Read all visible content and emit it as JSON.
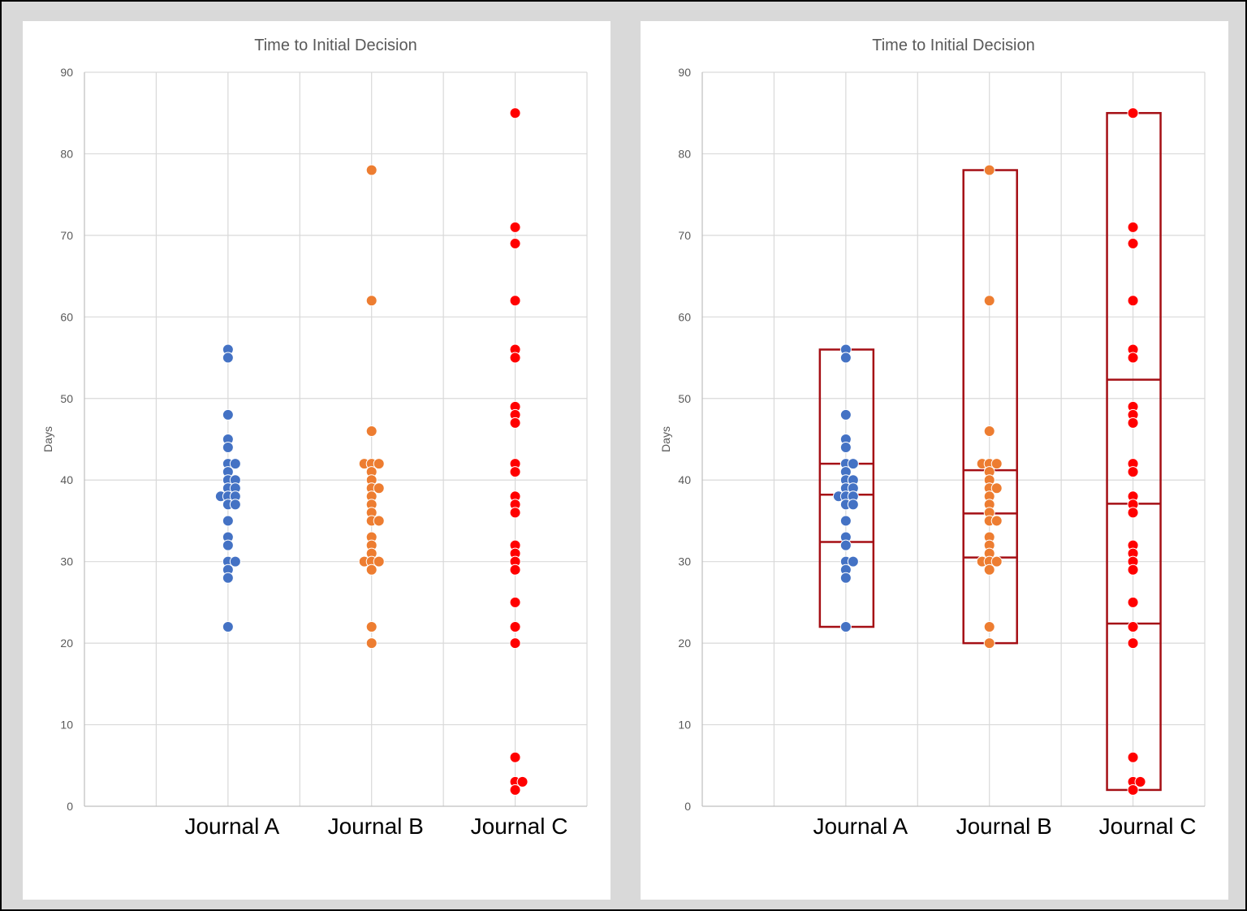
{
  "chart_data": [
    {
      "type": "scatter",
      "title": "Time to Initial Decision",
      "ylabel": "Days",
      "xlabel": "",
      "ylim": [
        0,
        90
      ],
      "yticks": [
        0,
        10,
        20,
        30,
        40,
        50,
        60,
        70,
        80,
        90
      ],
      "grid": true,
      "categories": [
        "Journal A",
        "Journal B",
        "Journal C"
      ],
      "series": [
        {
          "name": "Journal A",
          "color": "#4472c4",
          "values": [
            56,
            55,
            48,
            45,
            44,
            42,
            42,
            41,
            40,
            40,
            39,
            39,
            38,
            38,
            38,
            37,
            37,
            35,
            33,
            32,
            30,
            30,
            29,
            28,
            22
          ]
        },
        {
          "name": "Journal B",
          "color": "#ed7d31",
          "values": [
            78,
            62,
            46,
            42,
            42,
            42,
            41,
            40,
            39,
            39,
            38,
            37,
            36,
            35,
            35,
            33,
            32,
            31,
            30,
            30,
            30,
            29,
            22,
            20
          ]
        },
        {
          "name": "Journal C",
          "color": "#ff0000",
          "values": [
            85,
            71,
            69,
            62,
            56,
            55,
            49,
            48,
            47,
            42,
            41,
            38,
            37,
            36,
            32,
            31,
            30,
            29,
            25,
            22,
            20,
            6,
            3,
            3,
            2
          ]
        }
      ]
    },
    {
      "type": "scatter",
      "title": "Time to Initial Decision",
      "ylabel": "Days",
      "xlabel": "",
      "ylim": [
        0,
        90
      ],
      "yticks": [
        0,
        10,
        20,
        30,
        40,
        50,
        60,
        70,
        80,
        90
      ],
      "grid": true,
      "categories": [
        "Journal A",
        "Journal B",
        "Journal C"
      ],
      "series": [
        {
          "name": "Journal A",
          "color": "#4472c4",
          "values": [
            56,
            55,
            48,
            45,
            44,
            42,
            42,
            41,
            40,
            40,
            39,
            39,
            38,
            38,
            38,
            37,
            37,
            35,
            33,
            32,
            30,
            30,
            29,
            28,
            22
          ]
        },
        {
          "name": "Journal B",
          "color": "#ed7d31",
          "values": [
            78,
            62,
            46,
            42,
            42,
            42,
            41,
            40,
            39,
            39,
            38,
            37,
            36,
            35,
            35,
            33,
            32,
            31,
            30,
            30,
            30,
            29,
            22,
            20
          ]
        },
        {
          "name": "Journal C",
          "color": "#ff0000",
          "values": [
            85,
            71,
            69,
            62,
            56,
            55,
            49,
            48,
            47,
            42,
            41,
            38,
            37,
            36,
            32,
            31,
            30,
            29,
            25,
            22,
            20,
            6,
            3,
            3,
            2
          ]
        }
      ],
      "overlay": {
        "type": "box",
        "color": "#a50f15",
        "boxes": [
          {
            "category": "Journal A",
            "min": 22,
            "q1": 32.4,
            "median": 38.2,
            "q3": 42,
            "max": 56
          },
          {
            "category": "Journal B",
            "min": 20,
            "q1": 30.5,
            "median": 35.9,
            "q3": 41.2,
            "max": 78
          },
          {
            "category": "Journal C",
            "min": 2,
            "q1": 22.4,
            "median": 37.1,
            "q3": 52.3,
            "max": 85
          }
        ]
      }
    }
  ]
}
